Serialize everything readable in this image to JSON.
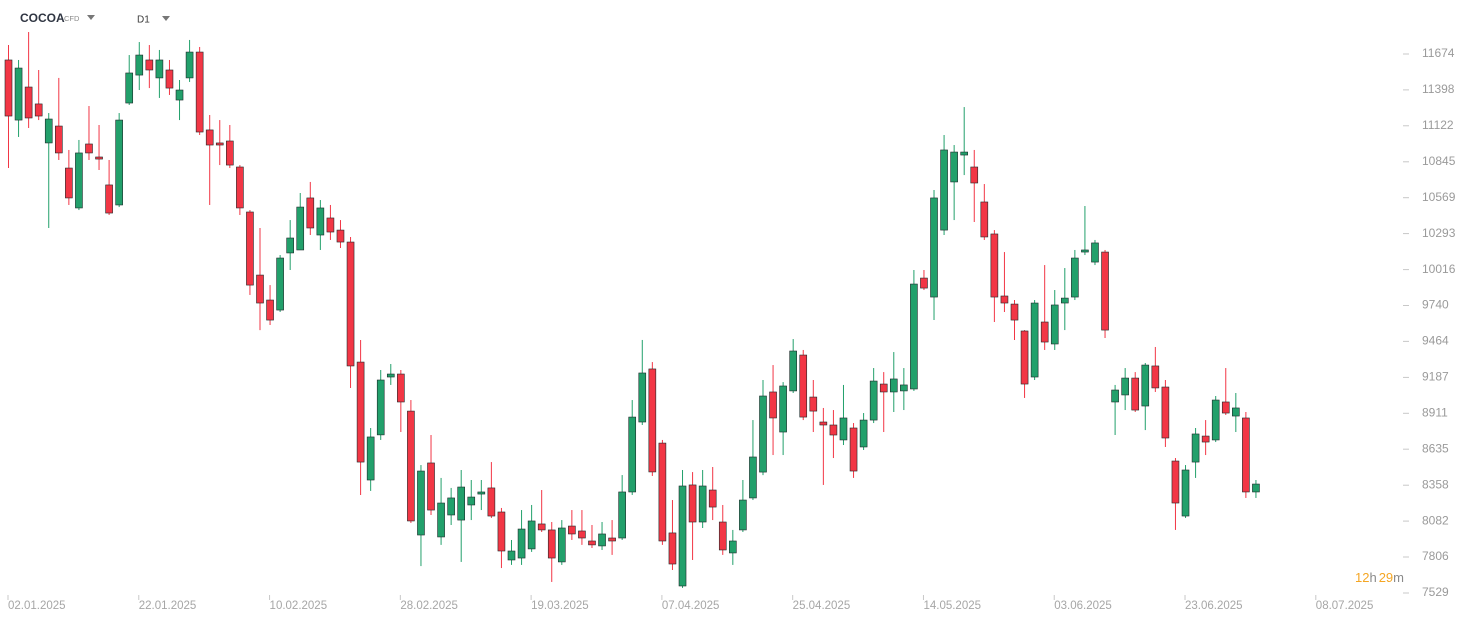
{
  "chart_data": {
    "type": "candlestick",
    "title": "COCOA",
    "subtitle": "CFD",
    "timeframe": "D1",
    "countdown": [
      "12",
      "h",
      "29",
      "m"
    ],
    "up_color": "#22a06b",
    "down_color": "#f23645",
    "ylim": [
      7506,
      11897
    ],
    "yticks": [
      7529,
      7806,
      8082,
      8358,
      8635,
      8911,
      9187,
      9464,
      9740,
      10016,
      10293,
      10569,
      10845,
      11122,
      11398,
      11674
    ],
    "categories": [
      "02.01.2025",
      null,
      null,
      null,
      null,
      null,
      null,
      null,
      null,
      null,
      null,
      null,
      null,
      "22.01.2025",
      null,
      null,
      null,
      null,
      null,
      null,
      null,
      null,
      null,
      null,
      null,
      null,
      "10.02.2025",
      null,
      null,
      null,
      null,
      null,
      null,
      null,
      null,
      null,
      null,
      null,
      null,
      "28.02.2025",
      null,
      null,
      null,
      null,
      null,
      null,
      null,
      null,
      null,
      null,
      null,
      null,
      "19.03.2025",
      null,
      null,
      null,
      null,
      null,
      null,
      null,
      null,
      null,
      null,
      null,
      null,
      "07.04.2025",
      null,
      null,
      null,
      null,
      null,
      null,
      null,
      null,
      null,
      null,
      null,
      null,
      "25.04.2025",
      null,
      null,
      null,
      null,
      null,
      null,
      null,
      null,
      null,
      null,
      null,
      null,
      "14.05.2025",
      null,
      null,
      null,
      null,
      null,
      null,
      null,
      null,
      null,
      null,
      null,
      null,
      "03.06.2025",
      null,
      null,
      null,
      null,
      null,
      null,
      null,
      null,
      null,
      null,
      null,
      null,
      "23.06.2025",
      null,
      null,
      null,
      null,
      null,
      null,
      null,
      null,
      null,
      null,
      null,
      null,
      "08.07.2025"
    ],
    "open": [
      11628,
      11166,
      11420,
      11290,
      10990,
      11120,
      10797,
      10490,
      10982,
      10882,
      10667,
      10513,
      11297,
      11512,
      11628,
      11490,
      11551,
      11320,
      11490,
      11689,
      11090,
      10990,
      11005,
      10805,
      10459,
      9974,
      9782,
      9705,
      10144,
      10167,
      10567,
      10282,
      10413,
      10320,
      10228,
      9305,
      8398,
      8745,
      9190,
      9213,
      8928,
      7975,
      8529,
      7960,
      8129,
      8090,
      8206,
      8290,
      8337,
      8152,
      7783,
      7798,
      7868,
      8060,
      8014,
      7768,
      8044,
      8006,
      7929,
      7891,
      7952,
      7952,
      8306,
      8844,
      9252,
      8682,
      7991,
      7583,
      8360,
      8075,
      8321,
      8075,
      7837,
      8014,
      8260,
      8459,
      9075,
      8767,
      9083,
      9359,
      9036,
      8844,
      8821,
      8706,
      8798,
      8652,
      8859,
      9136,
      9075,
      9083,
      9098,
      9951,
      9805,
      10320,
      10690,
      10897,
      10805,
      10536,
      10290,
      9813,
      9751,
      9544,
      9190,
      9613,
      9444,
      9759,
      9805,
      10151,
      10074,
      10151,
      8998,
      9052,
      9182,
      8967,
      9275,
      9113,
      8544,
      8121,
      8536,
      8736,
      8706,
      8998,
      8890,
      8875,
      8306,
      null,
      null,
      null,
      null,
      null,
      null
    ],
    "high": [
      11743,
      11628,
      11843,
      11551,
      11220,
      11490,
      10936,
      11013,
      11274,
      11128,
      10859,
      11220,
      11666,
      11766,
      11743,
      11705,
      11628,
      11474,
      11782,
      11728,
      11205,
      11166,
      11128,
      10820,
      10474,
      10336,
      9897,
      10128,
      10397,
      10605,
      10690,
      10551,
      10513,
      10397,
      10267,
      9475,
      8798,
      9244,
      9290,
      9244,
      9013,
      8513,
      8744,
      8414,
      8337,
      8475,
      8398,
      8398,
      8536,
      8183,
      7937,
      8167,
      8206,
      8321,
      8075,
      8090,
      8167,
      8167,
      8052,
      8075,
      8090,
      8436,
      9013,
      9475,
      9305,
      8706,
      8244,
      8475,
      8459,
      8475,
      8498,
      8206,
      8014,
      8398,
      8859,
      9167,
      9282,
      9151,
      9482,
      9398,
      9167,
      8952,
      8936,
      9129,
      8836,
      8913,
      9259,
      9228,
      9382,
      9259,
      10013,
      10013,
      10628,
      11051,
      10974,
      11266,
      10936,
      10674,
      10320,
      10151,
      9782,
      9551,
      9782,
      10051,
      9859,
      10028,
      10167,
      10505,
      10244,
      10167,
      9129,
      9259,
      9228,
      9298,
      9421,
      9167,
      8567,
      8513,
      8798,
      8859,
      9044,
      9259,
      9067,
      8921,
      8398,
      null,
      null,
      null,
      null,
      null,
      null
    ],
    "low": [
      10797,
      11036,
      11105,
      11166,
      10336,
      10859,
      10513,
      10474,
      10859,
      10782,
      10436,
      10497,
      11282,
      11397,
      11412,
      11336,
      11359,
      11166,
      11459,
      11051,
      10513,
      10820,
      10797,
      10436,
      9821,
      9551,
      9590,
      9690,
      10013,
      10167,
      10282,
      10167,
      10244,
      10182,
      9106,
      8283,
      8314,
      8706,
      9129,
      8767,
      8068,
      7736,
      8129,
      7899,
      8052,
      7768,
      8090,
      8167,
      8106,
      7721,
      7745,
      7745,
      7845,
      7998,
      7614,
      7745,
      7937,
      7899,
      7875,
      7860,
      7822,
      7937,
      8283,
      8821,
      8429,
      7899,
      7706,
      7568,
      7783,
      8029,
      8090,
      7822,
      7745,
      7998,
      8244,
      8436,
      8590,
      8590,
      9067,
      8859,
      8767,
      8360,
      8567,
      8667,
      8414,
      8629,
      8836,
      8767,
      8921,
      8936,
      9083,
      9859,
      9628,
      10282,
      10397,
      10743,
      10382,
      10244,
      9613,
      9690,
      9475,
      9029,
      9167,
      9398,
      9398,
      9551,
      9782,
      10128,
      10051,
      9490,
      8744,
      8936,
      8921,
      8782,
      9075,
      8652,
      8014,
      8106,
      8414,
      8590,
      8690,
      8898,
      8767,
      8260,
      8260,
      null,
      null,
      null,
      null,
      null,
      null
    ],
    "close": [
      11197,
      11566,
      11182,
      11197,
      11174,
      10913,
      10567,
      10913,
      10913,
      10866,
      10451,
      11166,
      11528,
      11666,
      11551,
      11628,
      11412,
      11397,
      11689,
      11074,
      10974,
      10974,
      10820,
      10490,
      9897,
      9759,
      9628,
      10105,
      10259,
      10497,
      10336,
      10490,
      10305,
      10228,
      9275,
      8536,
      8729,
      9167,
      9213,
      8998,
      8083,
      8467,
      8167,
      8221,
      8260,
      8344,
      8267,
      8306,
      8121,
      7852,
      7852,
      8021,
      8083,
      8014,
      7798,
      8029,
      7983,
      7952,
      7899,
      7983,
      7929,
      8306,
      8882,
      9221,
      8460,
      7929,
      7752,
      8352,
      8075,
      8352,
      8190,
      7860,
      7929,
      8244,
      8575,
      9044,
      8875,
      9121,
      9390,
      8882,
      8928,
      8821,
      8744,
      8875,
      8467,
      8859,
      9159,
      9075,
      9175,
      9129,
      9905,
      9874,
      10567,
      10936,
      10920,
      10920,
      10682,
      10267,
      9805,
      9759,
      9628,
      9136,
      9759,
      9459,
      9744,
      9797,
      10105,
      10167,
      10221,
      9551,
      9090,
      9182,
      8936,
      9282,
      9106,
      8721,
      8221,
      8475,
      8752,
      8690,
      9013,
      8913,
      8952,
      8306,
      8367,
      null,
      null,
      null,
      null,
      null,
      null
    ]
  }
}
